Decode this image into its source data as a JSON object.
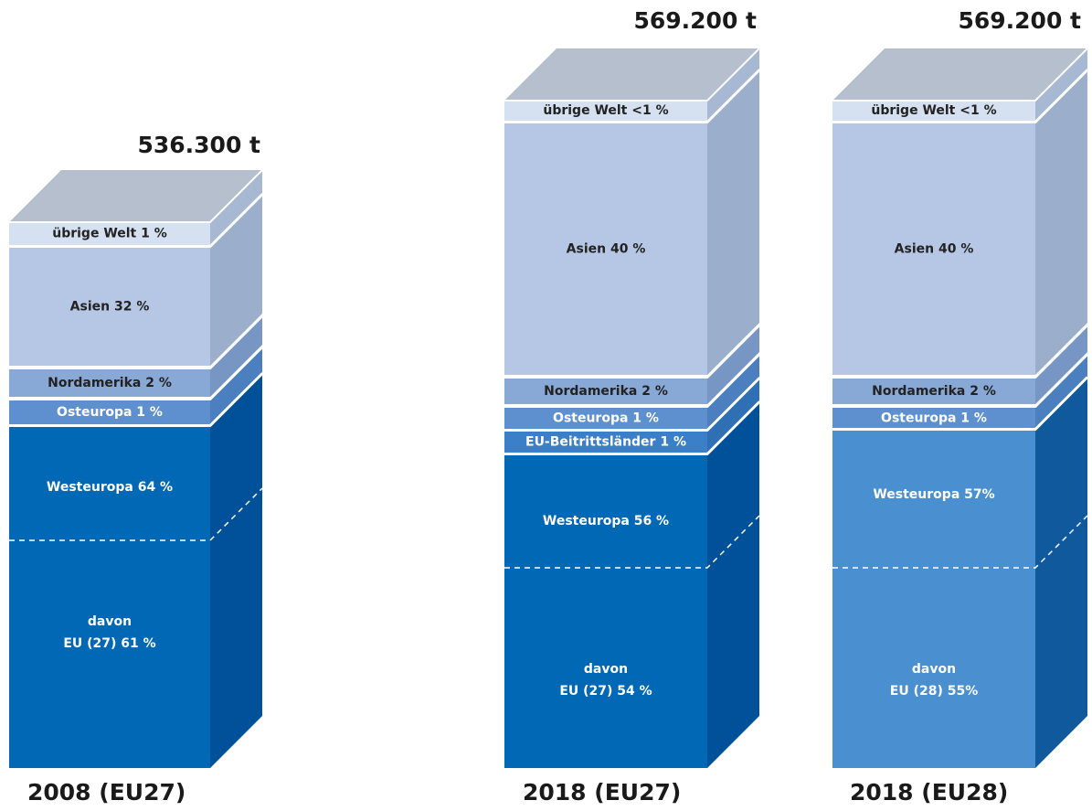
{
  "columns": [
    {
      "total": "536.300 t",
      "label": "2008 (EU27)",
      "segments": [
        {
          "label": "übrige Welt 1 %"
        },
        {
          "label": "Asien 32 %"
        },
        {
          "label": "Nordamerika 2 %"
        },
        {
          "label": "Osteuropa 1 %"
        },
        {
          "label": "Westeuropa 64 %"
        }
      ],
      "subtotal": [
        "davon",
        "EU (27) 61 %"
      ]
    },
    {
      "total": "569.200 t",
      "label": "2018 (EU27)",
      "segments": [
        {
          "label": "übrige Welt <1 %"
        },
        {
          "label": "Asien 40 %"
        },
        {
          "label": "Nordamerika 2 %"
        },
        {
          "label": "Osteuropa 1 %"
        },
        {
          "label": "EU-Beitrittsländer 1 %"
        },
        {
          "label": "Westeuropa 56 %"
        }
      ],
      "subtotal": [
        "davon",
        "EU (27) 54 %"
      ]
    },
    {
      "total": "569.200 t",
      "label": "2018 (EU28)",
      "segments": [
        {
          "label": "übrige Welt <1 %"
        },
        {
          "label": "Asien 40 %"
        },
        {
          "label": "Nordamerika 2 %"
        },
        {
          "label": "Osteuropa 1 %"
        },
        {
          "label": "Westeuropa 57%"
        }
      ],
      "subtotal": [
        "davon",
        "EU (28) 55%"
      ]
    }
  ]
}
